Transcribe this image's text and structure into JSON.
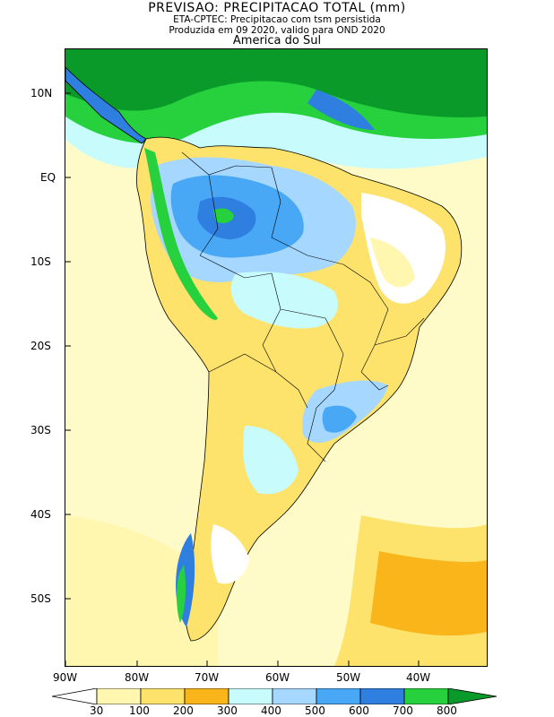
{
  "header": {
    "title": "PREVISAO: PRECIPITACAO TOTAL (mm)",
    "subtitle": "ETA-CPTEC: Precipitacao com tsm persistida",
    "produced": "Produzida em 09 2020, valido para OND 2020",
    "region": "America do Sul"
  },
  "axes": {
    "lat_labels": [
      "10N",
      "EQ",
      "10S",
      "20S",
      "30S",
      "40S",
      "50S"
    ],
    "lon_labels": [
      "90W",
      "80W",
      "70W",
      "60W",
      "50W",
      "40W"
    ]
  },
  "legend": {
    "thresholds": [
      "30",
      "100",
      "200",
      "300",
      "400",
      "500",
      "600",
      "700",
      "800"
    ],
    "colors": [
      "#ffffff",
      "#fff7b0",
      "#fde36c",
      "#f9b51a",
      "#c8fbfb",
      "#a6d7ff",
      "#48a8f5",
      "#2f7fe0",
      "#27d13d",
      "#0a9a2a"
    ]
  },
  "map": {
    "ocean_color": "#fffbc9",
    "land_color": "#fde36c",
    "wet_color": "#48a8f5",
    "dry_color": "#ffffff",
    "border_color": "#000000"
  }
}
